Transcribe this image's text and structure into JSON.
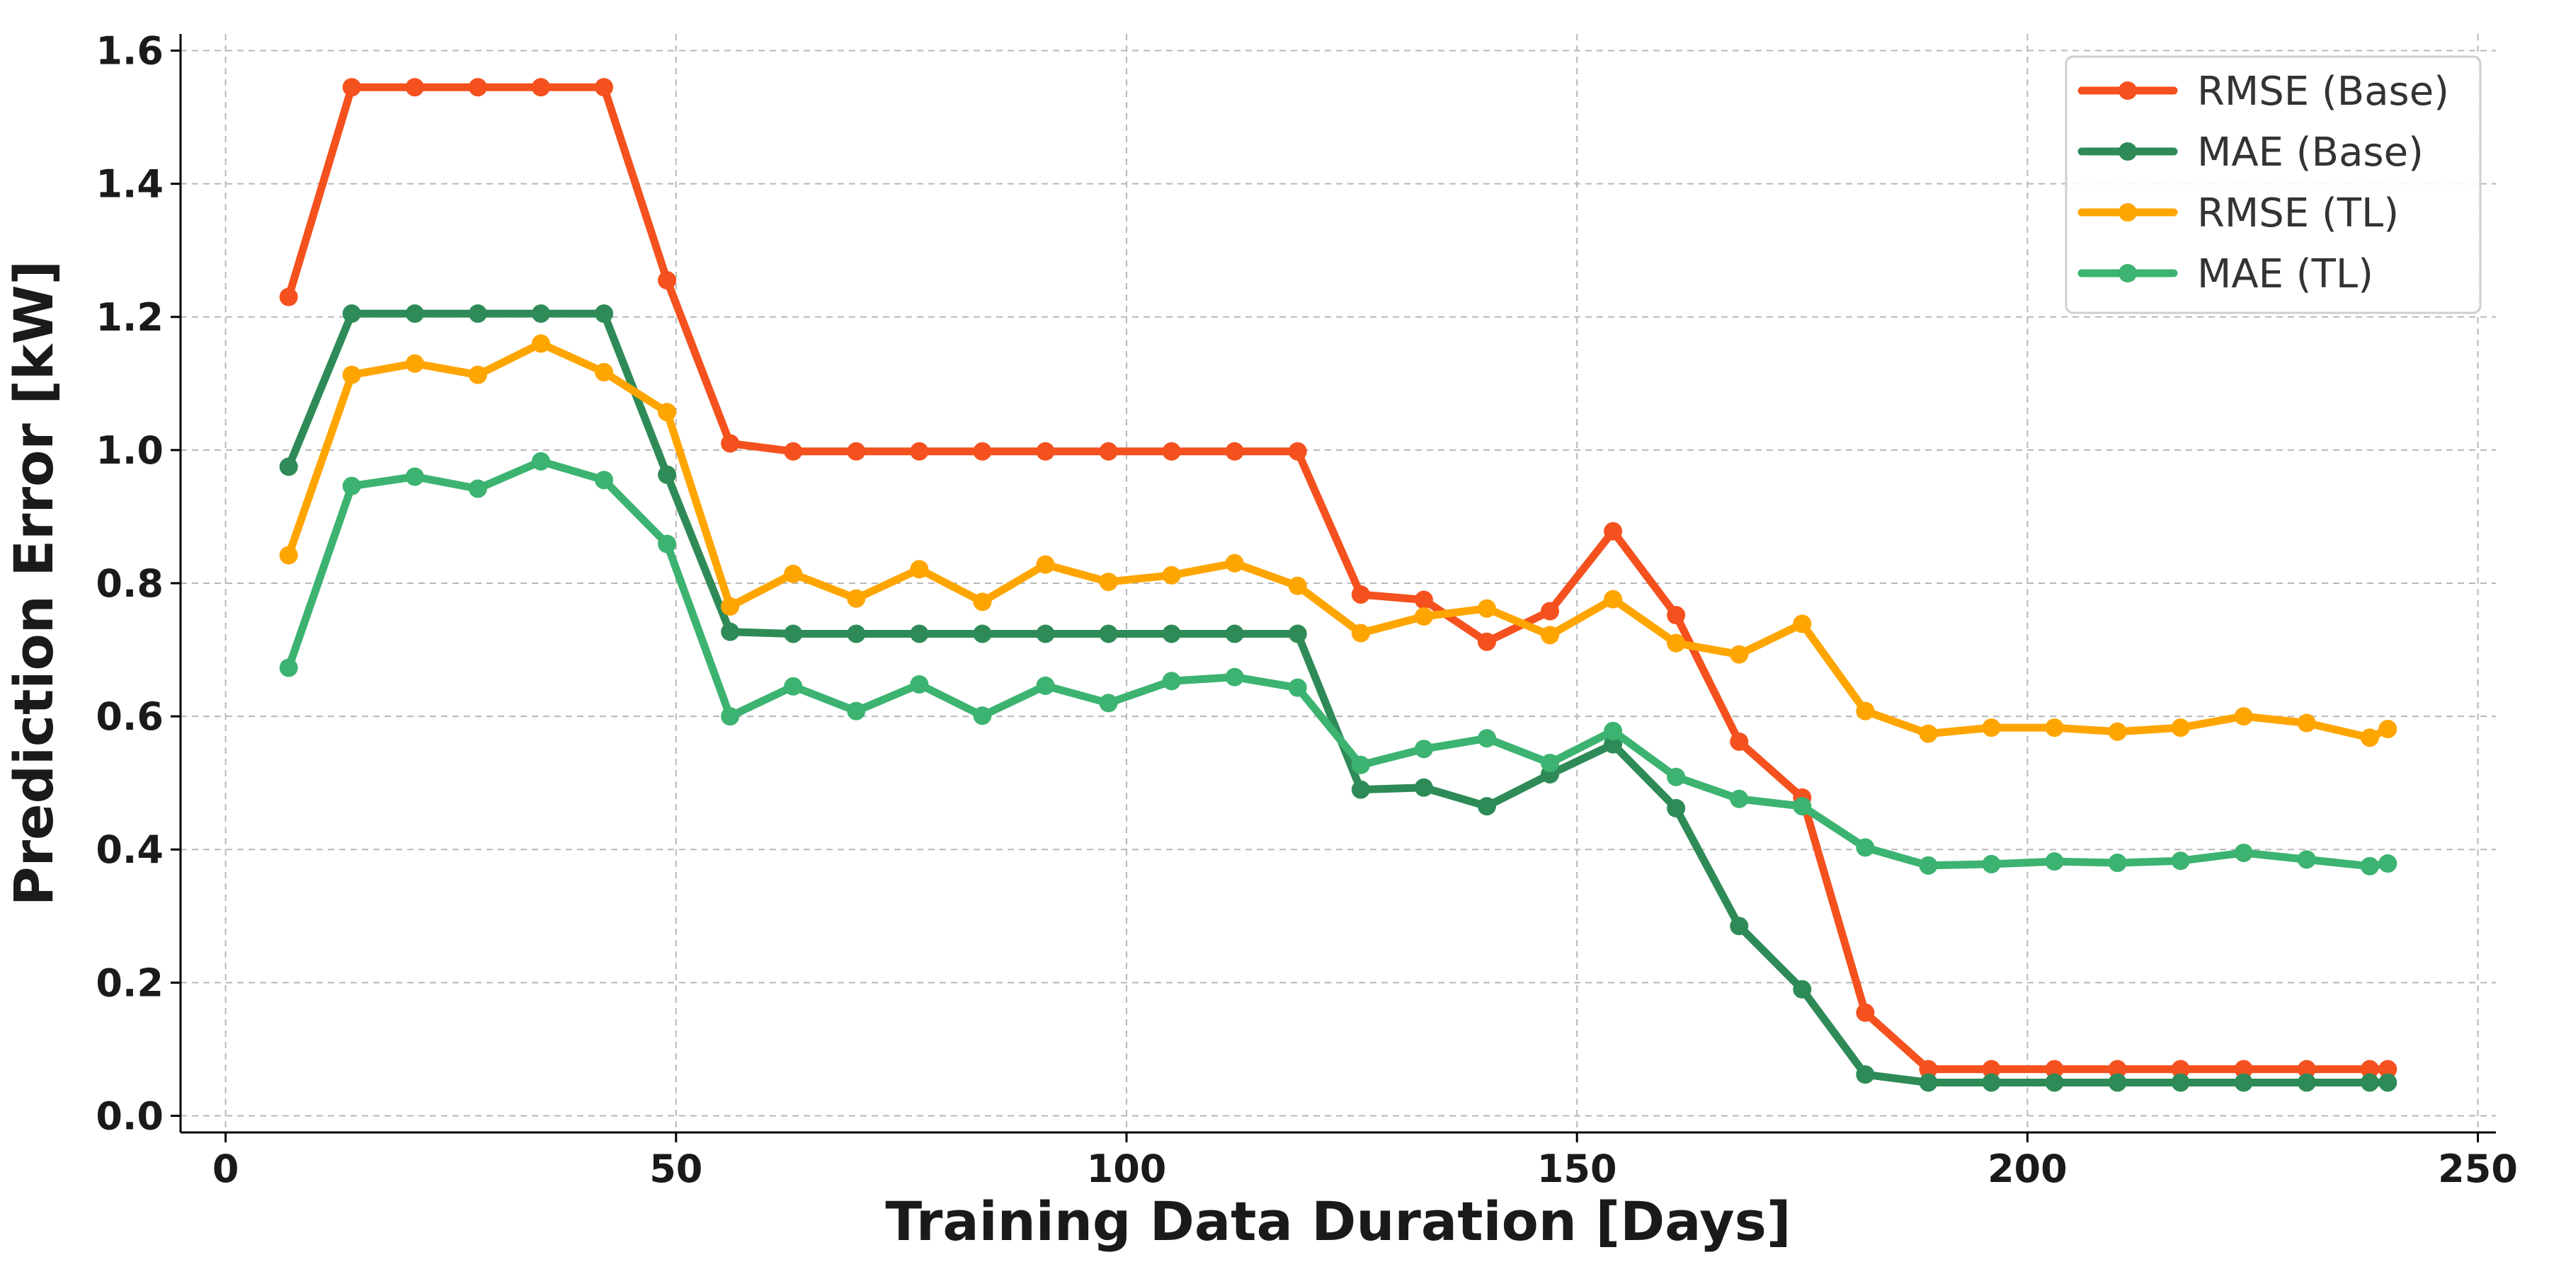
{
  "chart_data": {
    "type": "line",
    "xlabel": "Training Data Duration [Days]",
    "ylabel": "Prediction Error [kW]",
    "xlim": [
      -5,
      252
    ],
    "ylim": [
      -0.025,
      1.625
    ],
    "xticks": [
      0,
      50,
      100,
      150,
      200,
      250
    ],
    "yticks": [
      0.0,
      0.2,
      0.4,
      0.6,
      0.8,
      1.0,
      1.2,
      1.4,
      1.6
    ],
    "xtick_labels": [
      "0",
      "50",
      "100",
      "150",
      "200",
      "250"
    ],
    "ytick_labels": [
      "0.0",
      "0.2",
      "0.4",
      "0.6",
      "0.8",
      "1.0",
      "1.2",
      "1.4",
      "1.6"
    ],
    "grid": true,
    "legend_position": "top-right",
    "x": [
      7,
      14,
      21,
      28,
      35,
      42,
      49,
      56,
      63,
      70,
      77,
      84,
      91,
      98,
      105,
      112,
      119,
      126,
      133,
      140,
      147,
      154,
      161,
      168,
      175,
      182,
      189,
      196,
      203,
      210,
      217,
      224,
      231,
      238,
      240
    ],
    "series": [
      {
        "name": "RMSE (Base)",
        "color": "#f4511e",
        "values": [
          1.23,
          1.545,
          1.545,
          1.545,
          1.545,
          1.545,
          1.255,
          1.01,
          0.998,
          0.998,
          0.998,
          0.998,
          0.998,
          0.998,
          0.998,
          0.998,
          0.998,
          0.783,
          0.775,
          0.712,
          0.758,
          0.878,
          0.752,
          0.562,
          0.478,
          0.155,
          0.07,
          0.07,
          0.07,
          0.07,
          0.07,
          0.07,
          0.07,
          0.07,
          0.07
        ]
      },
      {
        "name": "MAE (Base)",
        "color": "#2e8b57",
        "values": [
          0.975,
          1.205,
          1.205,
          1.205,
          1.205,
          1.205,
          0.963,
          0.727,
          0.724,
          0.724,
          0.724,
          0.724,
          0.724,
          0.724,
          0.724,
          0.724,
          0.724,
          0.49,
          0.493,
          0.465,
          0.513,
          0.558,
          0.462,
          0.285,
          0.19,
          0.062,
          0.05,
          0.05,
          0.05,
          0.05,
          0.05,
          0.05,
          0.05,
          0.05,
          0.05
        ]
      },
      {
        "name": "RMSE (TL)",
        "color": "#ffa500",
        "values": [
          0.842,
          1.113,
          1.13,
          1.113,
          1.16,
          1.117,
          1.057,
          0.765,
          0.814,
          0.777,
          0.821,
          0.772,
          0.828,
          0.802,
          0.812,
          0.83,
          0.796,
          0.725,
          0.75,
          0.762,
          0.722,
          0.776,
          0.71,
          0.693,
          0.739,
          0.608,
          0.574,
          0.583,
          0.583,
          0.577,
          0.583,
          0.6,
          0.59,
          0.568,
          0.581
        ]
      },
      {
        "name": "MAE (TL)",
        "color": "#3cb371",
        "values": [
          0.673,
          0.946,
          0.96,
          0.942,
          0.983,
          0.955,
          0.859,
          0.6,
          0.645,
          0.608,
          0.648,
          0.601,
          0.646,
          0.62,
          0.653,
          0.659,
          0.643,
          0.527,
          0.551,
          0.567,
          0.53,
          0.578,
          0.509,
          0.476,
          0.465,
          0.403,
          0.376,
          0.378,
          0.382,
          0.38,
          0.383,
          0.395,
          0.385,
          0.375,
          0.379
        ]
      }
    ]
  }
}
